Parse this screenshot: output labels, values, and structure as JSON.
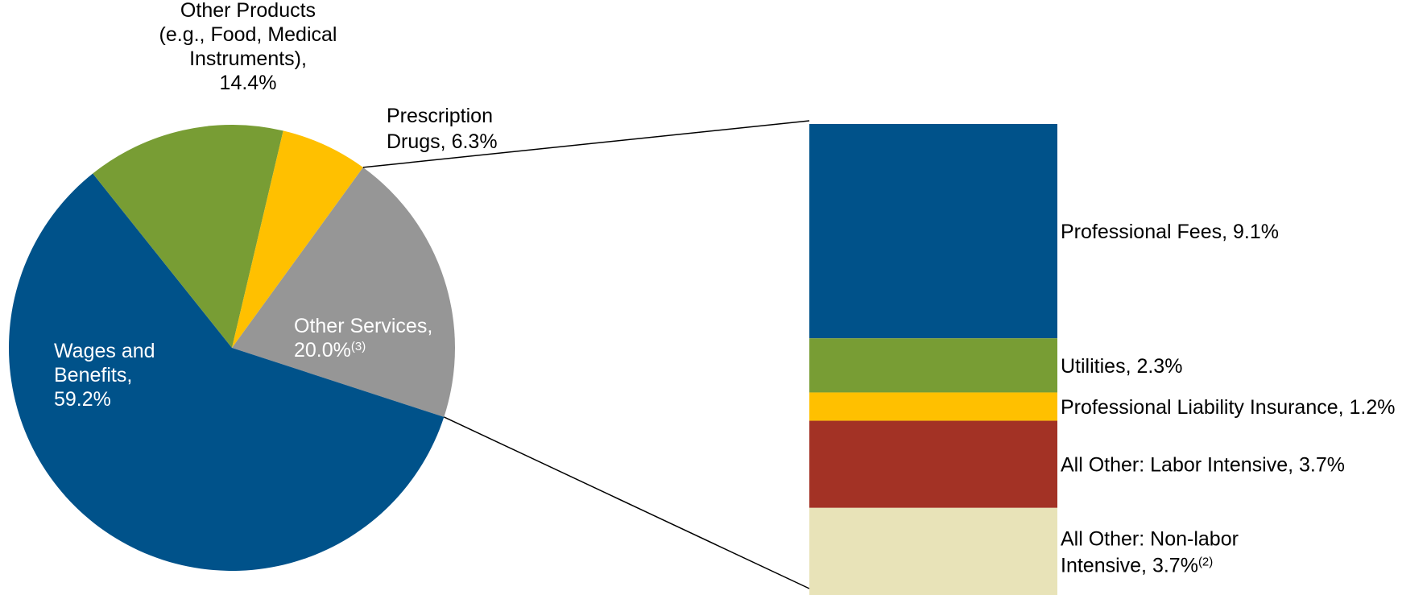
{
  "chart_data": [
    {
      "type": "pie",
      "slices": [
        {
          "label": "Wages and Benefits",
          "display": [
            "Wages and",
            "Benefits,",
            "59.2%"
          ],
          "value": 59.2,
          "color": "#00528A"
        },
        {
          "label": "Other Products (e.g., Food, Medical Instruments)",
          "display": [
            "Other Products",
            "(e.g., Food, Medical",
            "Instruments),",
            "14.4%"
          ],
          "value": 14.4,
          "color": "#789D34"
        },
        {
          "label": "Prescription Drugs",
          "display": [
            "Prescription",
            "Drugs,  6.3%"
          ],
          "value": 6.3,
          "color": "#FFC000"
        },
        {
          "label": "Other Services",
          "display": [
            "Other Services,",
            "20.0%"
          ],
          "sup": "(3)",
          "value": 20.0,
          "color": "#969696"
        }
      ]
    },
    {
      "type": "bar",
      "stacked": true,
      "breakdown_of": "Other Services",
      "segments": [
        {
          "label": "Professional Fees, 9.1%",
          "value": 9.1,
          "color": "#00528A"
        },
        {
          "label": "Utilities, 2.3%",
          "value": 2.3,
          "color": "#789D34"
        },
        {
          "label": "Professional Liability Insurance, 1.2%",
          "value": 1.2,
          "color": "#FFC000"
        },
        {
          "label": "All Other: Labor Intensive, 3.7%",
          "value": 3.7,
          "color": "#A33225"
        },
        {
          "label": [
            "All Other: Non-labor",
            "Intensive, 3.7%"
          ],
          "sup": "(2)",
          "value": 3.7,
          "color": "#E8E3B8"
        }
      ]
    }
  ]
}
